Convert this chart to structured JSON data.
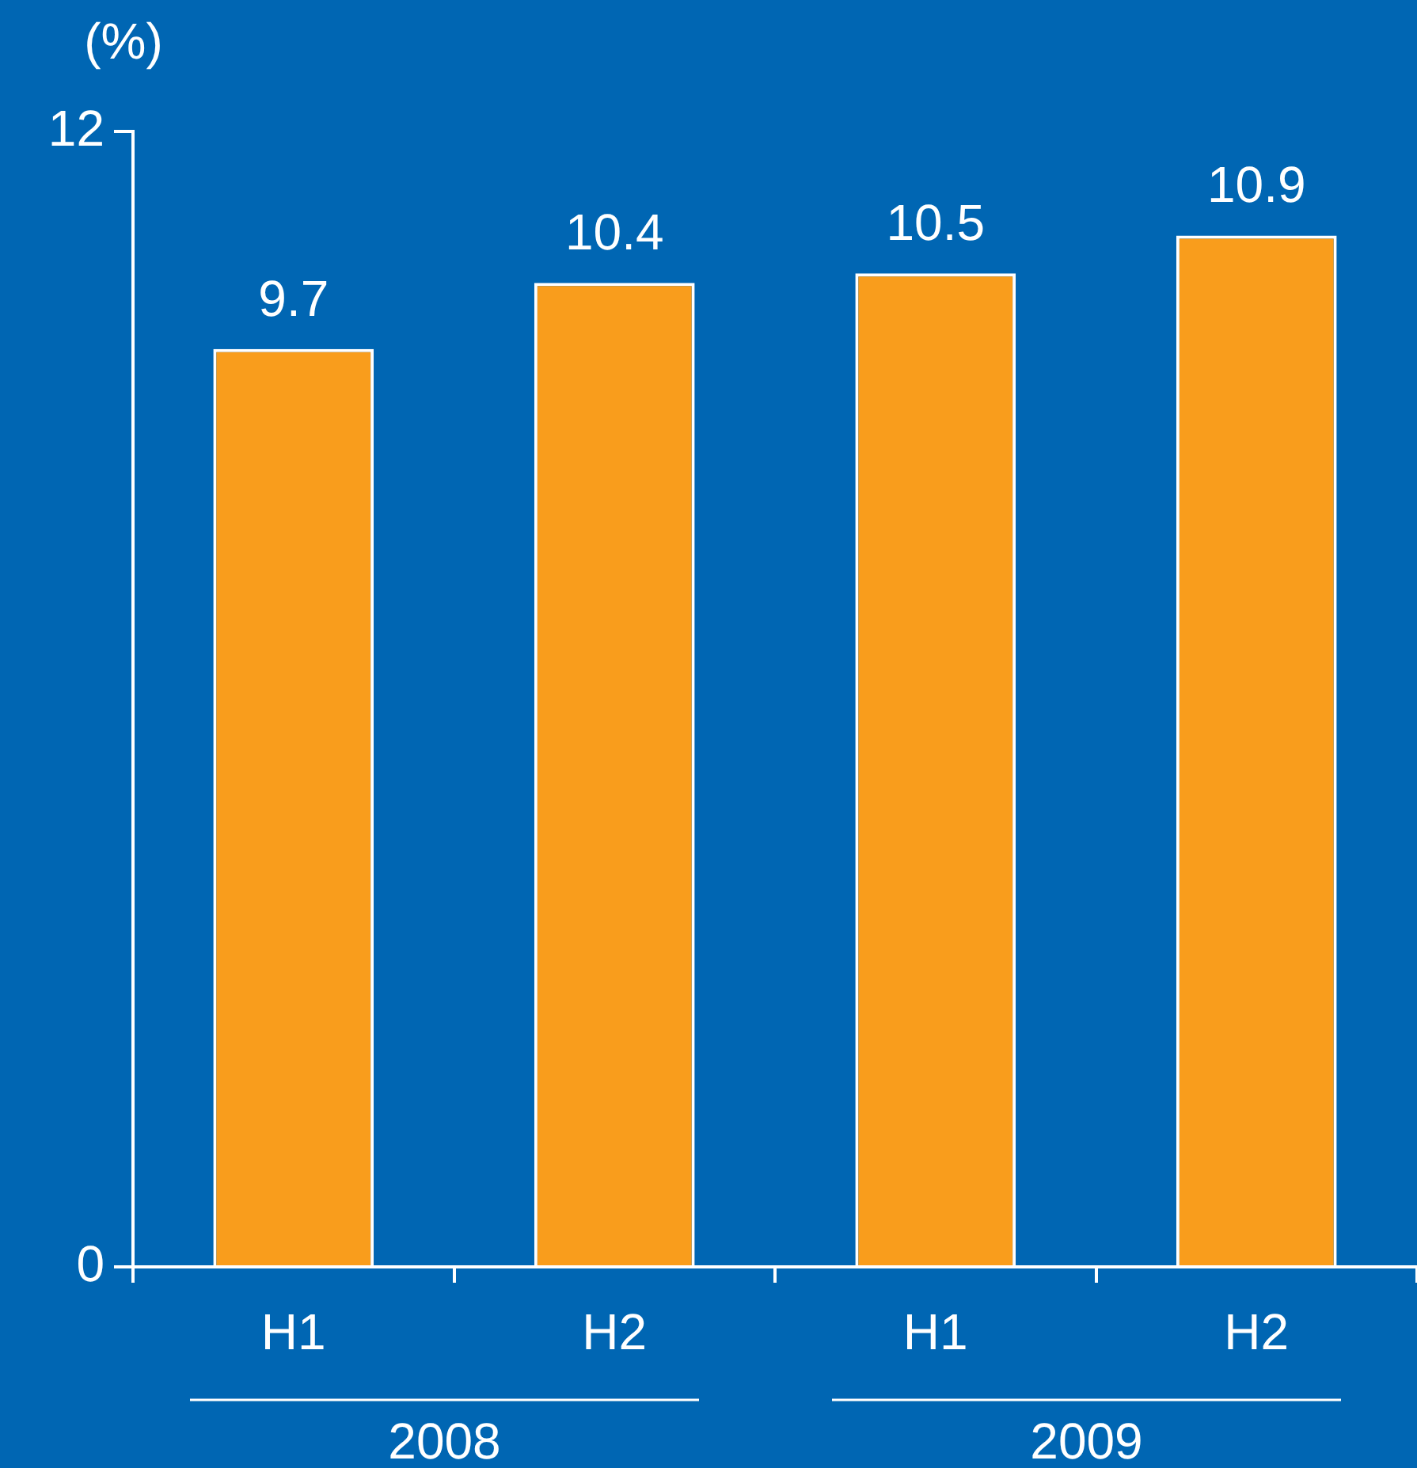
{
  "chart_data": {
    "type": "bar",
    "ylabel": "(%)",
    "categories": [
      "H1",
      "H2",
      "H1",
      "H2"
    ],
    "values": [
      9.7,
      10.4,
      10.5,
      10.9
    ],
    "color": "#f99d1c",
    "ylim": [
      0,
      12
    ],
    "yticks": [
      0,
      12
    ],
    "grid": false,
    "legend": false,
    "data_labels": true,
    "annotations": [
      "2008",
      "2009"
    ]
  }
}
